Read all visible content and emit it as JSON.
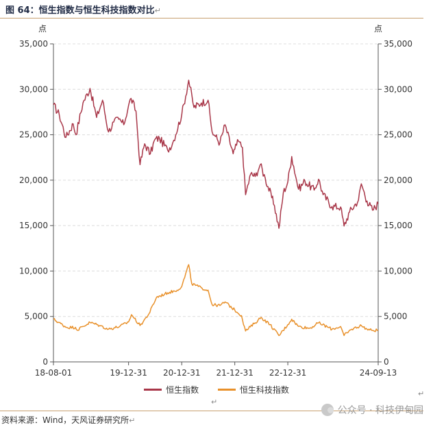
{
  "figure": {
    "title": "图 64：恒生指数与恒生科技指数对比",
    "return_mark": "↵",
    "source": "资料来源：Wind，天风证券研究所",
    "watermark": "公众号 · 科技伊甸园"
  },
  "chart_data": {
    "type": "line",
    "y_unit_left": "点",
    "y_unit_right": "点",
    "ylim": [
      0,
      35000
    ],
    "y_ticks": [
      0,
      5000,
      10000,
      15000,
      20000,
      25000,
      30000,
      35000
    ],
    "y_tick_labels": [
      "0",
      "5,000",
      "10,000",
      "15,000",
      "20,000",
      "25,000",
      "30,000",
      "35,000"
    ],
    "xlim": [
      "2018-08-01",
      "2024-09-13"
    ],
    "x_ticks": [
      "2018-08-01",
      "2019-12-31",
      "2020-12-31",
      "2021-12-31",
      "2022-12-31",
      "2024-09-13"
    ],
    "x_tick_labels": [
      "18-08-01",
      "19-12-31",
      "20-12-31",
      "21-12-31",
      "22-12-31",
      "24-09-13"
    ],
    "grid": true,
    "legend_position": "bottom",
    "series": [
      {
        "name": "恒生指数",
        "color": "#a83648",
        "points": [
          [
            "2018-08-01",
            28300
          ],
          [
            "2018-09-10",
            27200
          ],
          [
            "2018-10-26",
            24700
          ],
          [
            "2018-12-15",
            26200
          ],
          [
            "2019-01-03",
            25000
          ],
          [
            "2019-02-20",
            28500
          ],
          [
            "2019-04-10",
            30100
          ],
          [
            "2019-05-25",
            26900
          ],
          [
            "2019-07-05",
            28800
          ],
          [
            "2019-08-15",
            25300
          ],
          [
            "2019-09-20",
            26400
          ],
          [
            "2019-10-25",
            26700
          ],
          [
            "2019-11-28",
            26100
          ],
          [
            "2019-12-31",
            28200
          ],
          [
            "2020-01-17",
            29000
          ],
          [
            "2020-02-20",
            27600
          ],
          [
            "2020-03-19",
            21700
          ],
          [
            "2020-04-20",
            24000
          ],
          [
            "2020-05-29",
            22900
          ],
          [
            "2020-06-30",
            24500
          ],
          [
            "2020-07-31",
            24600
          ],
          [
            "2020-09-25",
            23300
          ],
          [
            "2020-10-30",
            24100
          ],
          [
            "2020-12-31",
            27200
          ],
          [
            "2021-02-17",
            31000
          ],
          [
            "2021-03-25",
            28000
          ],
          [
            "2021-05-15",
            28500
          ],
          [
            "2021-06-30",
            28800
          ],
          [
            "2021-07-28",
            25300
          ],
          [
            "2021-08-20",
            24800
          ],
          [
            "2021-09-20",
            24100
          ],
          [
            "2021-10-25",
            26100
          ],
          [
            "2021-12-20",
            22900
          ],
          [
            "2021-12-31",
            23400
          ],
          [
            "2022-01-25",
            24300
          ],
          [
            "2022-02-22",
            23600
          ],
          [
            "2022-03-15",
            18400
          ],
          [
            "2022-04-20",
            20700
          ],
          [
            "2022-05-20",
            20400
          ],
          [
            "2022-06-24",
            21700
          ],
          [
            "2022-07-29",
            20200
          ],
          [
            "2022-09-30",
            17200
          ],
          [
            "2022-10-31",
            14700
          ],
          [
            "2022-11-30",
            18600
          ],
          [
            "2022-12-31",
            19800
          ],
          [
            "2023-01-27",
            22600
          ],
          [
            "2023-03-15",
            19000
          ],
          [
            "2023-04-28",
            19900
          ],
          [
            "2023-06-30",
            18900
          ],
          [
            "2023-07-31",
            20100
          ],
          [
            "2023-08-31",
            18400
          ],
          [
            "2023-10-31",
            17100
          ],
          [
            "2023-12-29",
            17050
          ],
          [
            "2024-01-22",
            14950
          ],
          [
            "2024-02-29",
            16500
          ],
          [
            "2024-04-30",
            17800
          ],
          [
            "2024-05-20",
            19600
          ],
          [
            "2024-06-28",
            17700
          ],
          [
            "2024-08-05",
            16700
          ],
          [
            "2024-09-13",
            17400
          ]
        ]
      },
      {
        "name": "恒生科技指数",
        "color": "#e8902a",
        "points": [
          [
            "2018-08-01",
            4700
          ],
          [
            "2018-10-30",
            3800
          ],
          [
            "2018-12-31",
            3800
          ],
          [
            "2019-01-10",
            3500
          ],
          [
            "2019-04-10",
            4350
          ],
          [
            "2019-06-15",
            4000
          ],
          [
            "2019-08-15",
            3600
          ],
          [
            "2019-10-31",
            3900
          ],
          [
            "2019-12-31",
            4400
          ],
          [
            "2020-01-20",
            5200
          ],
          [
            "2020-03-19",
            4000
          ],
          [
            "2020-05-20",
            5300
          ],
          [
            "2020-07-10",
            7100
          ],
          [
            "2020-09-25",
            7600
          ],
          [
            "2020-11-30",
            7900
          ],
          [
            "2020-12-31",
            8300
          ],
          [
            "2021-02-17",
            10700
          ],
          [
            "2021-03-10",
            8600
          ],
          [
            "2021-05-20",
            8100
          ],
          [
            "2021-06-30",
            7900
          ],
          [
            "2021-07-28",
            6300
          ],
          [
            "2021-09-20",
            6200
          ],
          [
            "2021-10-25",
            6600
          ],
          [
            "2021-12-31",
            5700
          ],
          [
            "2022-02-15",
            5100
          ],
          [
            "2022-03-15",
            3400
          ],
          [
            "2022-05-20",
            4300
          ],
          [
            "2022-06-30",
            4900
          ],
          [
            "2022-08-31",
            4100
          ],
          [
            "2022-10-31",
            2900
          ],
          [
            "2022-12-31",
            4100
          ],
          [
            "2023-01-27",
            4700
          ],
          [
            "2023-03-15",
            3900
          ],
          [
            "2023-05-31",
            3700
          ],
          [
            "2023-07-31",
            4300
          ],
          [
            "2023-10-31",
            3600
          ],
          [
            "2023-12-29",
            3900
          ],
          [
            "2024-01-22",
            2900
          ],
          [
            "2024-03-15",
            3600
          ],
          [
            "2024-05-20",
            4000
          ],
          [
            "2024-06-28",
            3600
          ],
          [
            "2024-08-05",
            3450
          ],
          [
            "2024-09-13",
            3500
          ]
        ]
      }
    ]
  }
}
